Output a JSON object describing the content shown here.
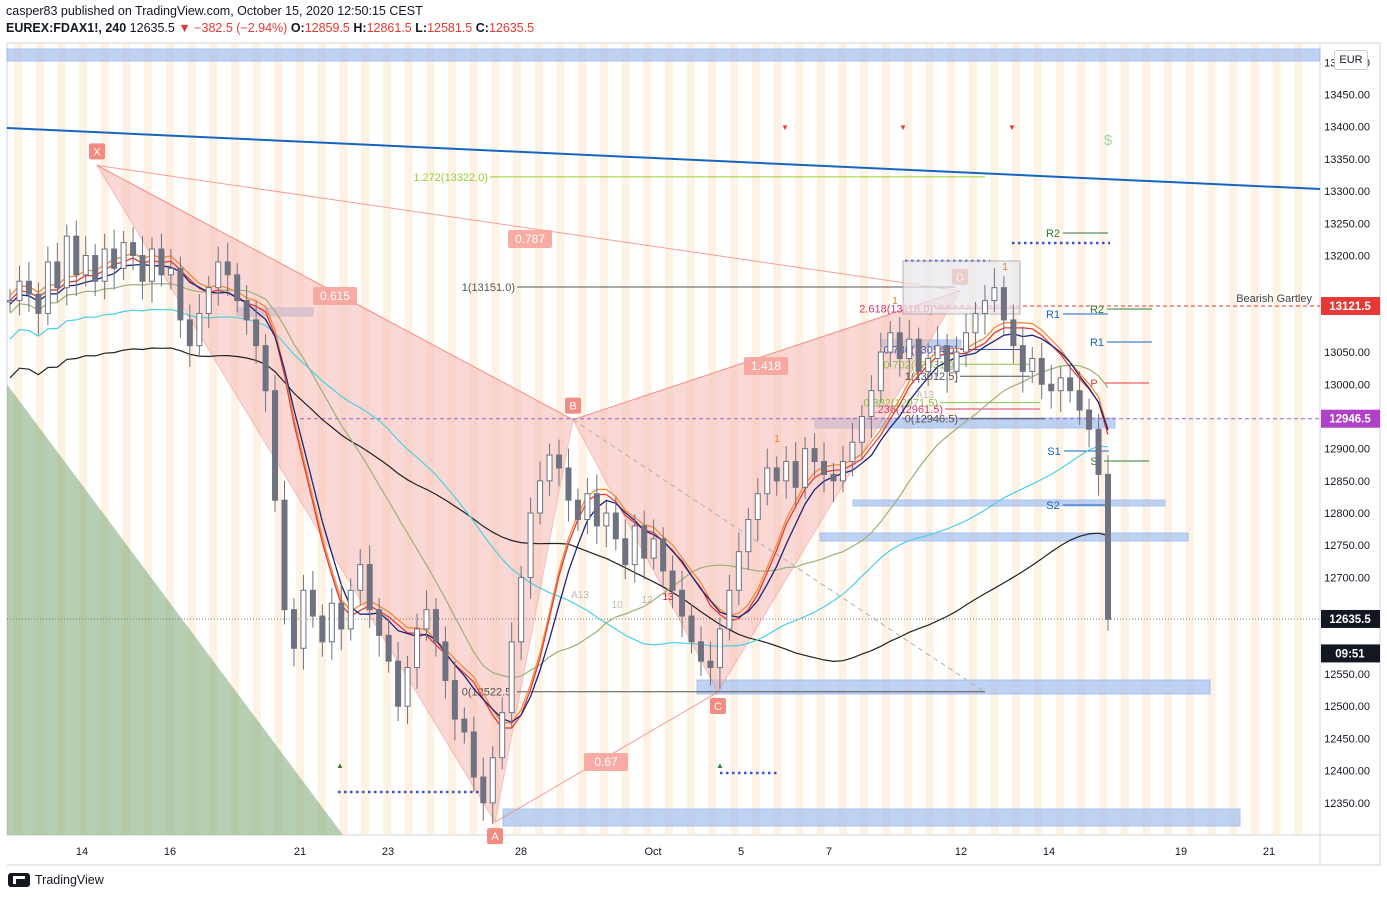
{
  "header": {
    "line1": "casper83 published on TradingView.com, October 15, 2020 12:50:15 CEST",
    "symbol": "EUREX:FDAX1!, 240",
    "price": "12635.5",
    "change": "−382.5 (−2.94%)",
    "o_label": "O:",
    "o": "12859.5",
    "h_label": "H:",
    "h": "12861.5",
    "l_label": "L:",
    "l": "12581.5",
    "c_label": "C:",
    "c": "12635.5"
  },
  "footer": {
    "brand": "TradingView"
  },
  "currency_label": "EUR",
  "colors": {
    "pattern_fill": "#f6b9b3",
    "pattern_line": "#f08a80",
    "zone_blue": "#a9c3ef",
    "trendline": "#1565c0",
    "price_tag_red": "#e53935",
    "price_tag_purple": "#b040c8",
    "price_tag_dark": "#131722",
    "candle": "#6f7280"
  },
  "chart_data": {
    "type": "candlestick",
    "ylim": [
      12300,
      13530
    ],
    "x_ticks": [
      "14",
      "16",
      "21",
      "23",
      "28",
      "Oct",
      "5",
      "7",
      "12",
      "14",
      "19",
      "21"
    ],
    "y_ticks": [
      12350,
      12400,
      12450,
      12500,
      12550,
      12600,
      12650,
      12700,
      12750,
      12800,
      12850,
      12900,
      12950,
      13000,
      13050,
      13100,
      13150,
      13200,
      13250,
      13300,
      13350,
      13400,
      13450,
      13500
    ],
    "price_tags": [
      {
        "label": "13121.5",
        "value": 13121.5,
        "color": "#e53935"
      },
      {
        "label": "12946.5",
        "value": 12946.5,
        "color": "#b040c8"
      },
      {
        "label": "12635.5",
        "value": 12635.5,
        "color": "#131722"
      },
      {
        "label": "09:51",
        "value": 12582,
        "color": "#131722"
      }
    ],
    "pattern_points": [
      {
        "label": "X",
        "value": 13340
      },
      {
        "label": "A",
        "value": 12320
      },
      {
        "label": "B",
        "value": 12945
      },
      {
        "label": "C",
        "value": 12522
      },
      {
        "label": "D",
        "value": 13145
      }
    ],
    "pattern_name": "Bearish Gartley",
    "ratios": [
      "0.615",
      "0.787",
      "1.418",
      "0.67"
    ],
    "fib_levels": [
      {
        "label": "1.272(13322.0)",
        "value": 13322
      },
      {
        "label": "1(13151.0)",
        "value": 13151
      },
      {
        "label": "2.618(13118.0)",
        "value": 13118
      },
      {
        "label": "0.786(13054.0)",
        "value": 13054
      },
      {
        "label": "0.702(13031.0)",
        "value": 13031
      },
      {
        "label": "1(13012.5)",
        "value": 13012.5
      },
      {
        "label": "0.382(12971.5)",
        "value": 12971.5
      },
      {
        "label": "0.236(12961.5)",
        "value": 12961.5
      },
      {
        "label": "0(12946.5)",
        "value": 12946.5
      },
      {
        "label": "0(12522.5)",
        "value": 12522.5
      }
    ],
    "pivots": [
      "R2",
      "R1",
      "R2",
      "R1",
      "P",
      "S1",
      "S",
      "S2"
    ],
    "annotations": [
      "A13",
      "A13",
      "13",
      "10",
      "12",
      "13",
      "1",
      "1",
      "1",
      "$"
    ],
    "series": [
      {
        "name": "Price",
        "values": [
          13130,
          13160,
          13140,
          13110,
          13190,
          13150,
          13230,
          13170,
          13200,
          13160,
          13210,
          13180,
          13220,
          13200,
          13160,
          13210,
          13170,
          13180,
          13100,
          13060,
          13110,
          13150,
          13190,
          13170,
          13130,
          13100,
          13060,
          12990,
          12820,
          12650,
          12590,
          12680,
          12640,
          12600,
          12660,
          12620,
          12680,
          12720,
          12650,
          12610,
          12570,
          12500,
          12560,
          12620,
          12650,
          12600,
          12540,
          12480,
          12460,
          12390,
          12350,
          12420,
          12490,
          12600,
          12700,
          12800,
          12850,
          12890,
          12870,
          12820,
          12790,
          12830,
          12780,
          12800,
          12760,
          12720,
          12780,
          12730,
          12760,
          12710,
          12680,
          12640,
          12600,
          12570,
          12560,
          12620,
          12680,
          12740,
          12790,
          12830,
          12870,
          12850,
          12880,
          12840,
          12900,
          12880,
          12860,
          12850,
          12880,
          12910,
          12950,
          12990,
          13050,
          13080,
          13040,
          13070,
          13020,
          13040,
          13060,
          13020,
          13050,
          13080,
          13110,
          13130,
          13150,
          13100,
          13060,
          13020,
          13040,
          13000,
          12990,
          13010,
          12990,
          12960,
          12930,
          12860,
          12635
        ]
      }
    ]
  }
}
